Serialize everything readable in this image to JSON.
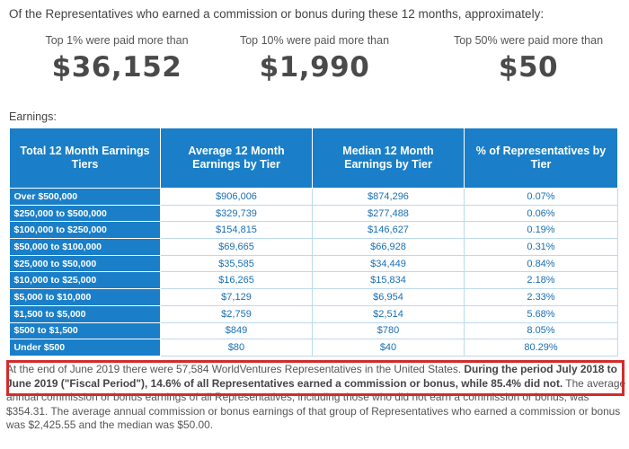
{
  "intro": "Of the Representatives who earned a commission or bonus during these 12 months, approximately:",
  "stats": [
    {
      "caption": "Top 1% were paid more than",
      "value": "$36,152"
    },
    {
      "caption": "Top 10% were paid more than",
      "value": "$1,990"
    },
    {
      "caption": "Top 50% were paid more than",
      "value": "$50"
    }
  ],
  "earnings_label": "Earnings:",
  "table": {
    "headers": [
      "Total 12 Month Earnings Tiers",
      "Average 12 Month Earnings by Tier",
      "Median 12 Month Earnings by Tier",
      "% of Representatives by Tier"
    ],
    "rows": [
      [
        "Over $500,000",
        "$906,006",
        "$874,296",
        "0.07%"
      ],
      [
        "$250,000 to $500,000",
        "$329,739",
        "$277,488",
        "0.06%"
      ],
      [
        "$100,000 to $250,000",
        "$154,815",
        "$146,627",
        "0.19%"
      ],
      [
        "$50,000 to $100,000",
        "$69,665",
        "$66,928",
        "0.31%"
      ],
      [
        "$25,000 to $50,000",
        "$35,585",
        "$34,449",
        "0.84%"
      ],
      [
        "$10,000 to $25,000",
        "$16,265",
        "$15,834",
        "2.18%"
      ],
      [
        "$5,000 to $10,000",
        "$7,129",
        "$6,954",
        "2.33%"
      ],
      [
        "$1,500 to $5,000",
        "$2,759",
        "$2,514",
        "5.68%"
      ],
      [
        "$500 to $1,500",
        "$849",
        "$780",
        "8.05%"
      ],
      [
        "Under $500",
        "$80",
        "$40",
        "80.29%"
      ]
    ]
  },
  "footnote": {
    "normal_1": "At the end of June 2019 there were 57,584 WorldVentures Representatives in the United States. ",
    "bold_1": "During the period July 2018 to June 2019 (\"Fiscal Period\"), 14.6% of all Representatives earned a commission or bonus, while 85.4% did not.",
    "normal_2": " The average annual commission or bonus earnings of all Representatives, including those who did not earn a commission or bonus, was $354.31. The average annual commission or bonus earnings of that group of Representatives who earned a commission or bonus was $2,425.55 and the median was $50.00.",
    "highlight_color": "#d22b2b"
  }
}
